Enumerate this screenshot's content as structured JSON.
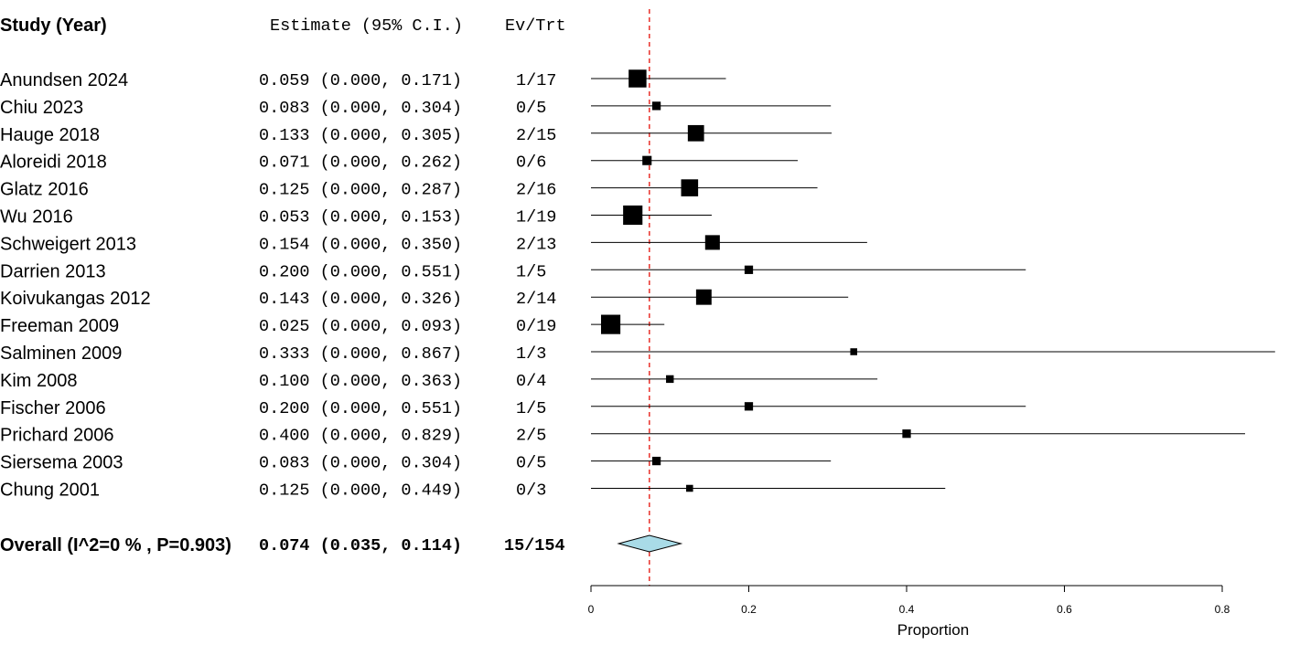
{
  "chart_data": {
    "type": "forest",
    "headers": {
      "study": "Study (Year)",
      "estimate": "Estimate (95% C.I.)",
      "events": "Ev/Trt"
    },
    "rows": [
      {
        "study": "Anundsen 2024",
        "estimate_text": "0.059 (0.000, 0.171)",
        "events_text": "1/17",
        "estimate": 0.059,
        "lower": 0.0,
        "upper": 0.171,
        "n": 17
      },
      {
        "study": "Chiu 2023",
        "estimate_text": "0.083 (0.000, 0.304)",
        "events_text": "0/5",
        "estimate": 0.083,
        "lower": 0.0,
        "upper": 0.304,
        "n": 5
      },
      {
        "study": "Hauge 2018",
        "estimate_text": "0.133 (0.000, 0.305)",
        "events_text": "2/15",
        "estimate": 0.133,
        "lower": 0.0,
        "upper": 0.305,
        "n": 15
      },
      {
        "study": "Aloreidi 2018",
        "estimate_text": "0.071 (0.000, 0.262)",
        "events_text": "0/6",
        "estimate": 0.071,
        "lower": 0.0,
        "upper": 0.262,
        "n": 6
      },
      {
        "study": "Glatz 2016",
        "estimate_text": "0.125 (0.000, 0.287)",
        "events_text": "2/16",
        "estimate": 0.125,
        "lower": 0.0,
        "upper": 0.287,
        "n": 16
      },
      {
        "study": "Wu 2016",
        "estimate_text": "0.053 (0.000, 0.153)",
        "events_text": "1/19",
        "estimate": 0.053,
        "lower": 0.0,
        "upper": 0.153,
        "n": 19
      },
      {
        "study": "Schweigert 2013",
        "estimate_text": "0.154 (0.000, 0.350)",
        "events_text": "2/13",
        "estimate": 0.154,
        "lower": 0.0,
        "upper": 0.35,
        "n": 13
      },
      {
        "study": "Darrien 2013",
        "estimate_text": "0.200 (0.000, 0.551)",
        "events_text": "1/5",
        "estimate": 0.2,
        "lower": 0.0,
        "upper": 0.551,
        "n": 5
      },
      {
        "study": "Koivukangas 2012",
        "estimate_text": "0.143 (0.000, 0.326)",
        "events_text": "2/14",
        "estimate": 0.143,
        "lower": 0.0,
        "upper": 0.326,
        "n": 14
      },
      {
        "study": "Freeman 2009",
        "estimate_text": "0.025 (0.000, 0.093)",
        "events_text": "0/19",
        "estimate": 0.025,
        "lower": 0.0,
        "upper": 0.093,
        "n": 19
      },
      {
        "study": "Salminen 2009",
        "estimate_text": "0.333 (0.000, 0.867)",
        "events_text": "1/3",
        "estimate": 0.333,
        "lower": 0.0,
        "upper": 0.867,
        "n": 3
      },
      {
        "study": "Kim 2008",
        "estimate_text": "0.100 (0.000, 0.363)",
        "events_text": "0/4",
        "estimate": 0.1,
        "lower": 0.0,
        "upper": 0.363,
        "n": 4
      },
      {
        "study": "Fischer 2006",
        "estimate_text": "0.200 (0.000, 0.551)",
        "events_text": "1/5",
        "estimate": 0.2,
        "lower": 0.0,
        "upper": 0.551,
        "n": 5
      },
      {
        "study": "Prichard 2006",
        "estimate_text": "0.400 (0.000, 0.829)",
        "events_text": "2/5",
        "estimate": 0.4,
        "lower": 0.0,
        "upper": 0.829,
        "n": 5
      },
      {
        "study": "Siersema 2003",
        "estimate_text": "0.083 (0.000, 0.304)",
        "events_text": "0/5",
        "estimate": 0.083,
        "lower": 0.0,
        "upper": 0.304,
        "n": 5
      },
      {
        "study": "Chung 2001",
        "estimate_text": "0.125 (0.000, 0.449)",
        "events_text": "0/3",
        "estimate": 0.125,
        "lower": 0.0,
        "upper": 0.449,
        "n": 3
      }
    ],
    "overall": {
      "label": "Overall (I^2=0 % , P=0.903)",
      "estimate_text": "0.074 (0.035, 0.114)",
      "events_text": "15/154",
      "estimate": 0.074,
      "lower": 0.035,
      "upper": 0.114
    },
    "xaxis": {
      "label": "Proportion",
      "ticks": [
        0,
        0.2,
        0.4,
        0.6,
        0.8
      ],
      "tick_labels": [
        "0",
        "0.2",
        "0.4",
        "0.6",
        "0.8"
      ],
      "range": [
        0,
        0.8
      ]
    },
    "reference_line": 0.074,
    "colors": {
      "reference_line": "#e8302a",
      "diamond_fill": "#a9dbe7",
      "marker": "#000000"
    }
  }
}
